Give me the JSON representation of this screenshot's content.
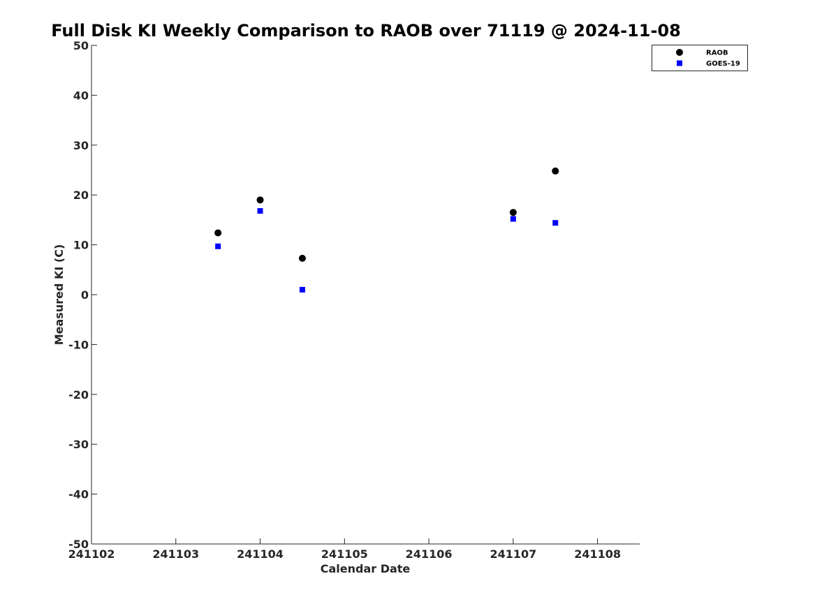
{
  "chart_data": {
    "type": "scatter",
    "title": "Full Disk KI Weekly Comparison to RAOB over 71119 @ 2024-11-08",
    "xlabel": "Calendar Date",
    "ylabel": "Measured KI (C)",
    "xlim": [
      "2024-11-02",
      "2024-11-08 12:00"
    ],
    "ylim": [
      -50,
      50
    ],
    "x_ticks": [
      {
        "x": "2024-11-02",
        "label": "241102"
      },
      {
        "x": "2024-11-03",
        "label": "241103"
      },
      {
        "x": "2024-11-04",
        "label": "241104"
      },
      {
        "x": "2024-11-05",
        "label": "241105"
      },
      {
        "x": "2024-11-06",
        "label": "241106"
      },
      {
        "x": "2024-11-07",
        "label": "241107"
      },
      {
        "x": "2024-11-08",
        "label": "241108"
      }
    ],
    "y_ticks": [
      50,
      40,
      30,
      20,
      10,
      0,
      -10,
      -20,
      -30,
      -40,
      -50
    ],
    "grid": false,
    "legend_position": "top-right",
    "series": [
      {
        "name": "RAOB",
        "marker": "circle",
        "color": "#000000",
        "points": [
          {
            "x": "2024-11-03 12:00",
            "y": 12.4
          },
          {
            "x": "2024-11-04 00:00",
            "y": 19.0
          },
          {
            "x": "2024-11-04 12:00",
            "y": 7.3
          },
          {
            "x": "2024-11-07 00:00",
            "y": 16.5
          },
          {
            "x": "2024-11-07 12:00",
            "y": 24.8
          }
        ]
      },
      {
        "name": "GOES-19",
        "marker": "square",
        "color": "#0000ff",
        "points": [
          {
            "x": "2024-11-03 12:00",
            "y": 9.7
          },
          {
            "x": "2024-11-04 00:00",
            "y": 16.8
          },
          {
            "x": "2024-11-04 12:00",
            "y": 1.0
          },
          {
            "x": "2024-11-07 00:00",
            "y": 15.2
          },
          {
            "x": "2024-11-07 12:00",
            "y": 14.4
          }
        ]
      }
    ]
  }
}
